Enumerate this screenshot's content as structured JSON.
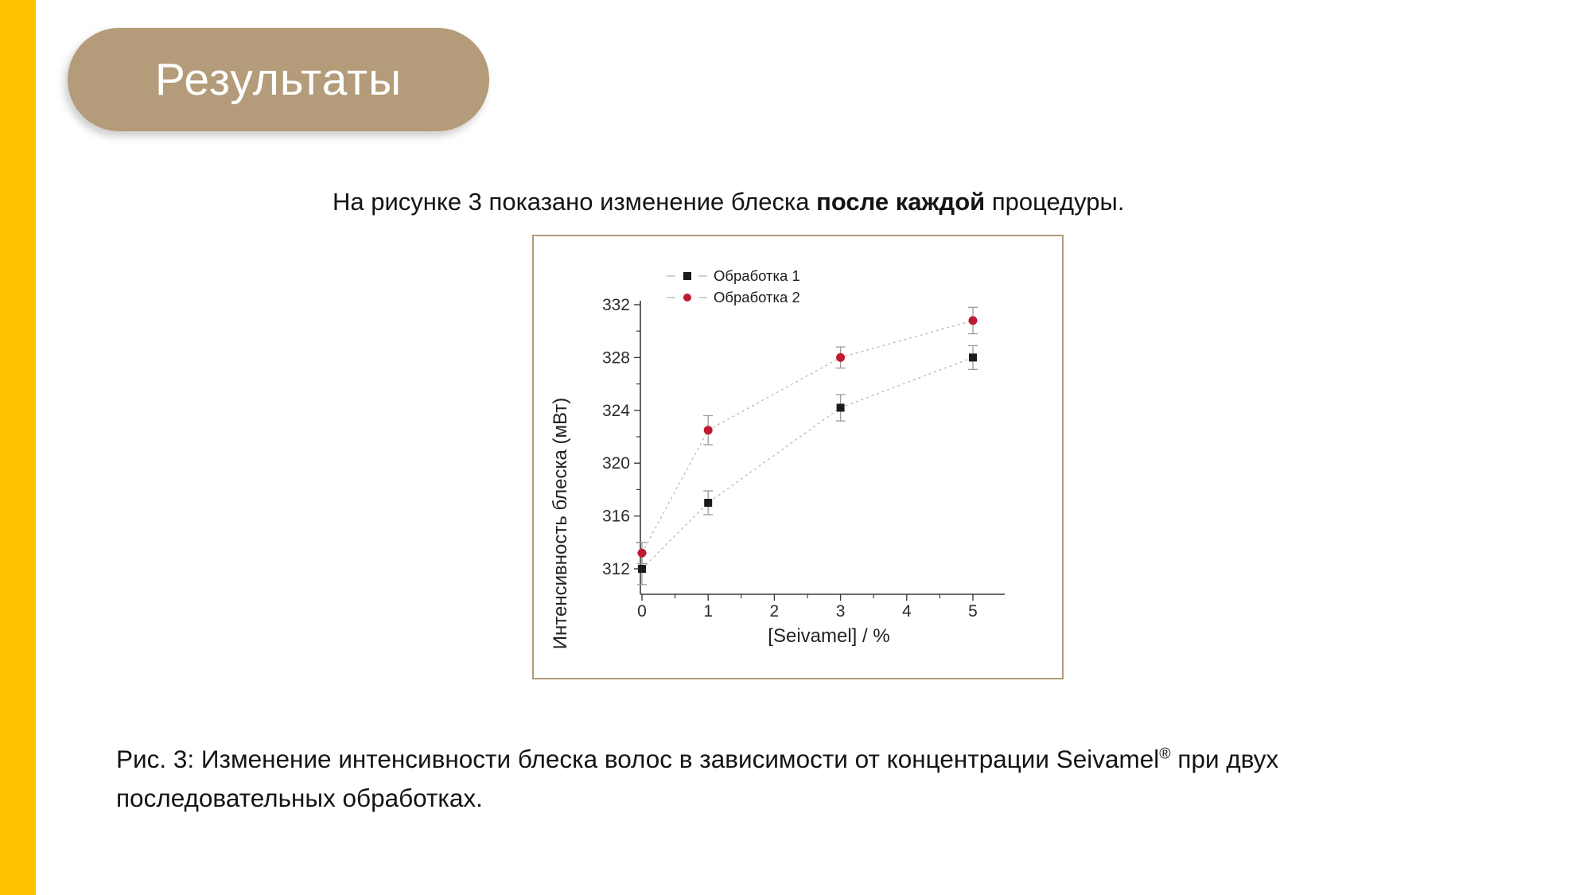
{
  "slide": {
    "accent_bar_color": "#FFC000",
    "pill_color": "#B49B79",
    "title": "Результаты",
    "intro": {
      "prefix": "На рисунке 3 показано изменение блеска ",
      "bold": "после каждой",
      "suffix": " процедуры."
    },
    "caption": {
      "part1": "Рис. 3: Изменение интенсивности блеска волос в зависимости от концентрации Seivamel",
      "sup": "®",
      "part2": " при двух последовательных обработках."
    }
  },
  "chart_data": {
    "type": "line",
    "title": "",
    "x": [
      0,
      1,
      3,
      5
    ],
    "series": [
      {
        "name": "Обработка 1",
        "marker": "square",
        "color": "#1c1c1c",
        "values": [
          312.0,
          317.0,
          324.2,
          328.0
        ],
        "errors": [
          1.2,
          0.9,
          1.0,
          0.9
        ]
      },
      {
        "name": "Обработка 2",
        "marker": "circle",
        "color": "#C01A31",
        "values": [
          313.2,
          322.5,
          328.0,
          330.8
        ],
        "errors": [
          0.8,
          1.1,
          0.8,
          1.0
        ]
      }
    ],
    "xlabel": "[Seivamel] / %",
    "ylabel": "Интенсивность блеска (мВт)",
    "xticks": [
      0,
      1,
      2,
      3,
      4,
      5
    ],
    "yticks": [
      312,
      316,
      320,
      324,
      328,
      332
    ],
    "x_minor": [
      0.5,
      1.5,
      2.5,
      3.5,
      4.5
    ],
    "y_minor": [
      314,
      318,
      322,
      326,
      330
    ],
    "xlim": [
      -0.35,
      5.5
    ],
    "ylim": [
      310.1,
      332.4
    ],
    "legend_position": "top-left-inside",
    "grid": false,
    "line_color": "#b4b4b4",
    "error_color": "#9a9a9a",
    "tick_text_color": "#2b2b2b",
    "axis_color": "#3c3c3c"
  }
}
